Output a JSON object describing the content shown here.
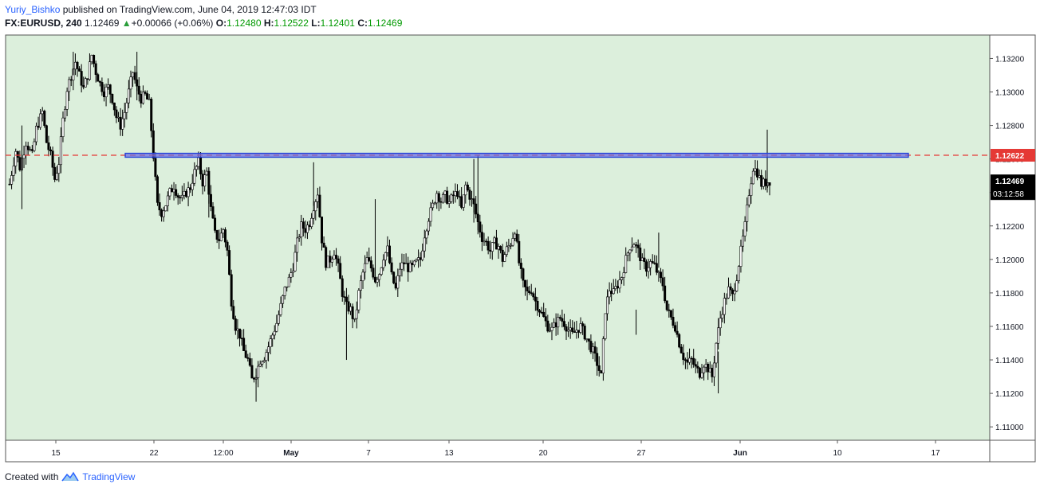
{
  "header": {
    "author": "Yuriy_Bishko",
    "published_text": "published on TradingView.com, June 04, 2019 12:47:03 IDT",
    "symbol": "FX:EURUSD, 240",
    "last": "1.12469",
    "change": "+0.00066 (+0.06%)",
    "o_label": "O:",
    "o_value": "1.12480",
    "h_label": "H:",
    "h_value": "1.12522",
    "l_label": "L:",
    "l_value": "1.12401",
    "c_label": "C:",
    "c_value": "1.12469"
  },
  "footer": {
    "created_with": "Created with",
    "brand": "TradingView"
  },
  "colors": {
    "plot_bg": "#dcefdc",
    "candle": "#000000",
    "level_line": "#e53935",
    "zone_fill": "#6a6ae0",
    "zone_border": "#1f3fd9",
    "price_tag_bg": "#e53935",
    "last_tag_bg": "#000000"
  },
  "chart_data": {
    "type": "candlestick",
    "symbol": "EURUSD",
    "timeframe": "240",
    "ylim": [
      1.1092,
      1.1334
    ],
    "y_ticks": [
      "1.13200",
      "1.13000",
      "1.12800",
      "1.12600",
      "1.12400",
      "1.12200",
      "1.12000",
      "1.11800",
      "1.11600",
      "1.11400",
      "1.11200",
      "1.11000"
    ],
    "x_ticks": [
      "15",
      "22",
      "12:00",
      "May",
      "7",
      "13",
      "20",
      "27",
      "Jun",
      "10",
      "17"
    ],
    "resistance_level": 1.12622,
    "resistance_label": "1.12622",
    "last_price_label": "1.12469",
    "countdown_label": "03:12:58",
    "close_path": [
      [
        0,
        1.1245
      ],
      [
        3,
        1.1265
      ],
      [
        5,
        1.1255
      ],
      [
        8,
        1.127
      ],
      [
        11,
        1.1262
      ],
      [
        13,
        1.1278
      ],
      [
        16,
        1.1288
      ],
      [
        18,
        1.127
      ],
      [
        20,
        1.1262
      ],
      [
        22,
        1.1248
      ],
      [
        24,
        1.1258
      ],
      [
        26,
        1.1283
      ],
      [
        28,
        1.1302
      ],
      [
        30,
        1.131
      ],
      [
        32,
        1.1318
      ],
      [
        34,
        1.131
      ],
      [
        36,
        1.1302
      ],
      [
        38,
        1.131
      ],
      [
        40,
        1.1322
      ],
      [
        42,
        1.1312
      ],
      [
        44,
        1.1305
      ],
      [
        46,
        1.13
      ],
      [
        48,
        1.1303
      ],
      [
        50,
        1.1296
      ],
      [
        52,
        1.1285
      ],
      [
        54,
        1.128
      ],
      [
        56,
        1.1288
      ],
      [
        58,
        1.13
      ],
      [
        60,
        1.1312
      ],
      [
        62,
        1.1302
      ],
      [
        64,
        1.1296
      ],
      [
        66,
        1.1298
      ],
      [
        68,
        1.1293
      ],
      [
        70,
        1.1262
      ],
      [
        72,
        1.1232
      ],
      [
        74,
        1.1228
      ],
      [
        76,
        1.1233
      ],
      [
        78,
        1.124
      ],
      [
        80,
        1.1244
      ],
      [
        82,
        1.1238
      ],
      [
        84,
        1.1236
      ],
      [
        86,
        1.124
      ],
      [
        88,
        1.1243
      ],
      [
        90,
        1.1252
      ],
      [
        92,
        1.1258
      ],
      [
        94,
        1.1246
      ],
      [
        96,
        1.1252
      ],
      [
        98,
        1.123
      ],
      [
        100,
        1.1215
      ],
      [
        102,
        1.1212
      ],
      [
        104,
        1.1218
      ],
      [
        106,
        1.1205
      ],
      [
        108,
        1.1175
      ],
      [
        110,
        1.116
      ],
      [
        112,
        1.1155
      ],
      [
        114,
        1.1145
      ],
      [
        116,
        1.114
      ],
      [
        118,
        1.1128
      ],
      [
        120,
        1.1132
      ],
      [
        122,
        1.114
      ],
      [
        124,
        1.1142
      ],
      [
        126,
        1.1148
      ],
      [
        128,
        1.1155
      ],
      [
        130,
        1.1162
      ],
      [
        132,
        1.1172
      ],
      [
        134,
        1.1182
      ],
      [
        136,
        1.1188
      ],
      [
        138,
        1.1196
      ],
      [
        140,
        1.121
      ],
      [
        142,
        1.122
      ],
      [
        144,
        1.1218
      ],
      [
        146,
        1.1222
      ],
      [
        148,
        1.1232
      ],
      [
        150,
        1.124
      ],
      [
        152,
        1.1212
      ],
      [
        154,
        1.1198
      ],
      [
        156,
        1.12
      ],
      [
        158,
        1.1205
      ],
      [
        160,
        1.1195
      ],
      [
        162,
        1.118
      ],
      [
        164,
        1.1172
      ],
      [
        166,
        1.117
      ],
      [
        168,
        1.1162
      ],
      [
        170,
        1.118
      ],
      [
        172,
        1.1192
      ],
      [
        174,
        1.12
      ],
      [
        176,
        1.1195
      ],
      [
        178,
        1.1188
      ],
      [
        180,
        1.1192
      ],
      [
        182,
        1.1202
      ],
      [
        184,
        1.1206
      ],
      [
        186,
        1.119
      ],
      [
        188,
        1.1182
      ],
      [
        190,
        1.1195
      ],
      [
        192,
        1.1198
      ],
      [
        194,
        1.1195
      ],
      [
        196,
        1.1195
      ],
      [
        198,
        1.1198
      ],
      [
        200,
        1.12
      ],
      [
        202,
        1.1215
      ],
      [
        204,
        1.1225
      ],
      [
        206,
        1.1232
      ],
      [
        208,
        1.124
      ],
      [
        210,
        1.1235
      ],
      [
        212,
        1.1238
      ],
      [
        214,
        1.1234
      ],
      [
        216,
        1.1238
      ],
      [
        218,
        1.124
      ],
      [
        220,
        1.123
      ],
      [
        222,
        1.1244
      ],
      [
        224,
        1.1238
      ],
      [
        226,
        1.1232
      ],
      [
        228,
        1.1222
      ],
      [
        230,
        1.1213
      ],
      [
        232,
        1.121
      ],
      [
        234,
        1.1205
      ],
      [
        236,
        1.121
      ],
      [
        238,
        1.1208
      ],
      [
        240,
        1.12
      ],
      [
        242,
        1.1206
      ],
      [
        244,
        1.121
      ],
      [
        246,
        1.1218
      ],
      [
        248,
        1.1198
      ],
      [
        250,
        1.1185
      ],
      [
        252,
        1.118
      ],
      [
        254,
        1.1182
      ],
      [
        256,
        1.1175
      ],
      [
        258,
        1.117
      ],
      [
        260,
        1.1165
      ],
      [
        262,
        1.116
      ],
      [
        264,
        1.1158
      ],
      [
        266,
        1.1162
      ],
      [
        268,
        1.1165
      ],
      [
        270,
        1.1162
      ],
      [
        272,
        1.1158
      ],
      [
        274,
        1.1155
      ],
      [
        276,
        1.1158
      ],
      [
        278,
        1.116
      ],
      [
        280,
        1.1155
      ],
      [
        282,
        1.115
      ],
      [
        284,
        1.1145
      ],
      [
        286,
        1.1138
      ],
      [
        288,
        1.113
      ],
      [
        290,
        1.117
      ],
      [
        292,
        1.1182
      ],
      [
        294,
        1.118
      ],
      [
        296,
        1.1185
      ],
      [
        298,
        1.119
      ],
      [
        300,
        1.12
      ],
      [
        302,
        1.1208
      ],
      [
        304,
        1.121
      ],
      [
        306,
        1.1205
      ],
      [
        308,
        1.1198
      ],
      [
        310,
        1.1195
      ],
      [
        312,
        1.1198
      ],
      [
        314,
        1.1196
      ],
      [
        316,
        1.119
      ],
      [
        318,
        1.1185
      ],
      [
        320,
        1.117
      ],
      [
        322,
        1.1165
      ],
      [
        324,
        1.116
      ],
      [
        326,
        1.115
      ],
      [
        328,
        1.1142
      ],
      [
        330,
        1.1138
      ],
      [
        332,
        1.114
      ],
      [
        334,
        1.1135
      ],
      [
        336,
        1.1132
      ],
      [
        338,
        1.1138
      ],
      [
        340,
        1.1135
      ],
      [
        342,
        1.113
      ],
      [
        344,
        1.115
      ],
      [
        346,
        1.1165
      ],
      [
        348,
        1.1175
      ],
      [
        350,
        1.1182
      ],
      [
        352,
        1.1178
      ],
      [
        354,
        1.119
      ],
      [
        356,
        1.1205
      ],
      [
        358,
        1.122
      ],
      [
        360,
        1.124
      ],
      [
        362,
        1.1255
      ],
      [
        364,
        1.1252
      ],
      [
        366,
        1.1245
      ],
      [
        368,
        1.1246
      ],
      [
        370,
        1.1247
      ]
    ],
    "spikes": [
      [
        6,
        1.123,
        1.128
      ],
      [
        31,
        1.131,
        1.1324
      ],
      [
        62,
        1.1295,
        1.1324
      ],
      [
        97,
        1.1225,
        1.1255
      ],
      [
        120,
        1.1115,
        1.1135
      ],
      [
        148,
        1.1232,
        1.1258
      ],
      [
        164,
        1.114,
        1.1175
      ],
      [
        178,
        1.119,
        1.1236
      ],
      [
        228,
        1.1215,
        1.1262
      ],
      [
        226,
        1.1222,
        1.126
      ],
      [
        305,
        1.1155,
        1.117
      ],
      [
        316,
        1.1195,
        1.1216
      ],
      [
        345,
        1.112,
        1.1145
      ],
      [
        380,
        1.126,
        1.12775
      ],
      [
        385,
        1.124,
        1.1262
      ]
    ]
  }
}
